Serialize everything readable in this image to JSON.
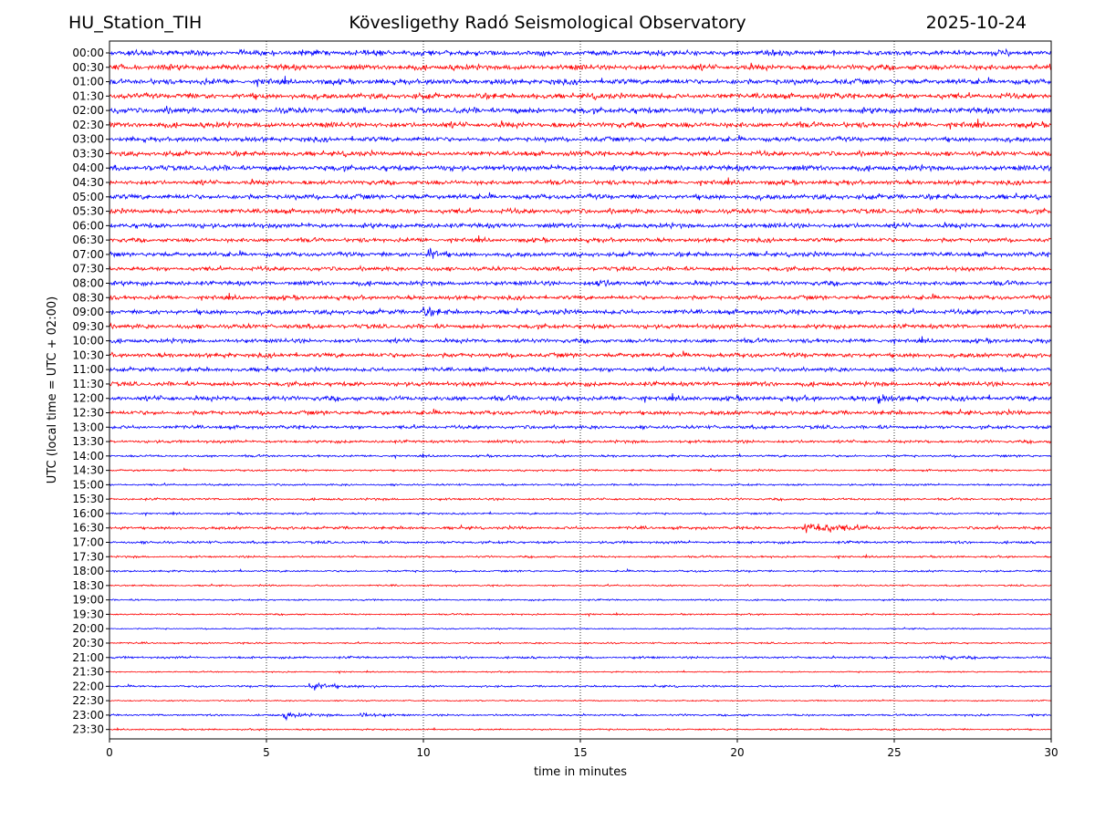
{
  "header": {
    "station": "HU_Station_TIH",
    "observatory": "Kövesligethy Radó Seismological Observatory",
    "date": "2025-10-24"
  },
  "chart_data": {
    "type": "line",
    "title": "Kövesligethy Radó Seismological Observatory",
    "xlabel": "time in minutes",
    "ylabel": "UTC (local time = UTC + 02:00)",
    "xlim": [
      0,
      30
    ],
    "x_ticks": [
      "0",
      "5",
      "10",
      "15",
      "20",
      "25",
      "30"
    ],
    "x_grid": "vertical dotted at 5, 10, 15, 20, 25",
    "row_colors": [
      "#0000ff",
      "#ff0000"
    ],
    "rows": [
      {
        "label": "00:00",
        "amplitude": 0.85
      },
      {
        "label": "00:30",
        "amplitude": 0.85
      },
      {
        "label": "01:00",
        "amplitude": 0.85
      },
      {
        "label": "01:30",
        "amplitude": 0.85
      },
      {
        "label": "02:00",
        "amplitude": 0.9
      },
      {
        "label": "02:30",
        "amplitude": 0.85
      },
      {
        "label": "03:00",
        "amplitude": 0.75
      },
      {
        "label": "03:30",
        "amplitude": 0.75
      },
      {
        "label": "04:00",
        "amplitude": 0.85
      },
      {
        "label": "04:30",
        "amplitude": 0.7
      },
      {
        "label": "05:00",
        "amplitude": 0.8
      },
      {
        "label": "05:30",
        "amplitude": 0.75
      },
      {
        "label": "06:00",
        "amplitude": 0.75
      },
      {
        "label": "06:30",
        "amplitude": 0.65
      },
      {
        "label": "07:00",
        "amplitude": 0.7,
        "events": [
          {
            "t": 10.2,
            "amp": 2.4,
            "dur": 0.6
          }
        ]
      },
      {
        "label": "07:30",
        "amplitude": 0.65
      },
      {
        "label": "08:00",
        "amplitude": 0.7,
        "events": [
          {
            "t": 15.5,
            "amp": 1.3,
            "dur": 1.0
          }
        ]
      },
      {
        "label": "08:30",
        "amplitude": 0.65
      },
      {
        "label": "09:00",
        "amplitude": 0.75,
        "events": [
          {
            "t": 10.0,
            "amp": 1.5,
            "dur": 0.8
          }
        ]
      },
      {
        "label": "09:30",
        "amplitude": 0.7
      },
      {
        "label": "10:00",
        "amplitude": 0.65
      },
      {
        "label": "10:30",
        "amplitude": 0.7
      },
      {
        "label": "11:00",
        "amplitude": 0.65
      },
      {
        "label": "11:30",
        "amplitude": 0.7
      },
      {
        "label": "12:00",
        "amplitude": 0.75,
        "events": [
          {
            "t": 24.5,
            "amp": 1.6,
            "dur": 0.8
          }
        ]
      },
      {
        "label": "12:30",
        "amplitude": 0.65
      },
      {
        "label": "13:00",
        "amplitude": 0.55
      },
      {
        "label": "13:30",
        "amplitude": 0.45
      },
      {
        "label": "14:00",
        "amplitude": 0.35
      },
      {
        "label": "14:30",
        "amplitude": 0.3
      },
      {
        "label": "15:00",
        "amplitude": 0.3
      },
      {
        "label": "15:30",
        "amplitude": 0.35
      },
      {
        "label": "16:00",
        "amplitude": 0.3
      },
      {
        "label": "16:30",
        "amplitude": 0.45,
        "events": [
          {
            "t": 22.2,
            "amp": 2.6,
            "dur": 2.5
          }
        ]
      },
      {
        "label": "17:00",
        "amplitude": 0.4
      },
      {
        "label": "17:30",
        "amplitude": 0.3
      },
      {
        "label": "18:00",
        "amplitude": 0.3
      },
      {
        "label": "18:30",
        "amplitude": 0.25
      },
      {
        "label": "19:00",
        "amplitude": 0.25
      },
      {
        "label": "19:30",
        "amplitude": 0.25
      },
      {
        "label": "20:00",
        "amplitude": 0.2
      },
      {
        "label": "20:30",
        "amplitude": 0.25
      },
      {
        "label": "21:00",
        "amplitude": 0.35,
        "events": [
          {
            "t": 26.5,
            "amp": 0.7,
            "dur": 1.5
          }
        ]
      },
      {
        "label": "21:30",
        "amplitude": 0.2
      },
      {
        "label": "22:00",
        "amplitude": 0.3,
        "events": [
          {
            "t": 6.4,
            "amp": 1.2,
            "dur": 2.2
          }
        ]
      },
      {
        "label": "22:30",
        "amplitude": 0.2
      },
      {
        "label": "23:00",
        "amplitude": 0.3,
        "events": [
          {
            "t": 5.6,
            "amp": 1.1,
            "dur": 1.5
          },
          {
            "t": 8.0,
            "amp": 1.3,
            "dur": 1.0
          }
        ]
      },
      {
        "label": "23:30",
        "amplitude": 0.25
      }
    ]
  }
}
